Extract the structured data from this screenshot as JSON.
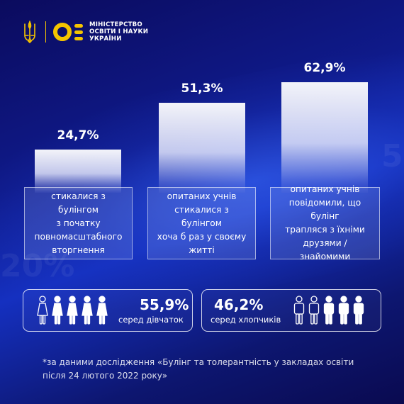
{
  "header": {
    "ministry_line1": "МІНІСТЕРСТВО",
    "ministry_line2": "ОСВІТИ І НАУКИ",
    "ministry_line3": "УКРАЇНИ",
    "accent_color": "#f5c400"
  },
  "background_text": {
    "left": "20%",
    "right": "5"
  },
  "chart_data": {
    "type": "bar",
    "categories": [
      "стикалися з булінгом з початку повномасштабного вторгнення",
      "опитаних учнів стикалися з булінгом хоча б раз у своєму житті",
      "опитаних учнів повідомили, що булінг трапляся з їхніми друзями / знайомими"
    ],
    "values": [
      24.7,
      51.3,
      62.9
    ],
    "value_labels": [
      "24,7%",
      "51,3%",
      "62,9%"
    ],
    "unit": "%",
    "ylim": [
      0,
      62.9
    ],
    "grid": false,
    "legend": "none"
  },
  "cards": [
    [
      "стикалися з булінгом",
      "з початку",
      "повномасштабного",
      "вторгнення"
    ],
    [
      "опитаних учнів",
      "стикалися з булінгом",
      "хоча б раз у своєму",
      "житті"
    ],
    [
      "опитаних учнів",
      "повідомили, що булінг",
      "трапляся з їхніми",
      "друзями / знайомими"
    ]
  ],
  "stats": {
    "girls": {
      "value": "55,9%",
      "label": "серед дівчаток",
      "highlighted": 4,
      "total": 5,
      "icon": "girl-figure-icon"
    },
    "boys": {
      "value": "46,2%",
      "label": "серед хлопчиків",
      "highlighted": 3,
      "total": 5,
      "icon": "boy-figure-icon"
    }
  },
  "footnote": {
    "line1": "*за даними дослідження «Булінг та толерантність у закладах освіти",
    "line2": "після 24 лютого 2022 року»"
  }
}
